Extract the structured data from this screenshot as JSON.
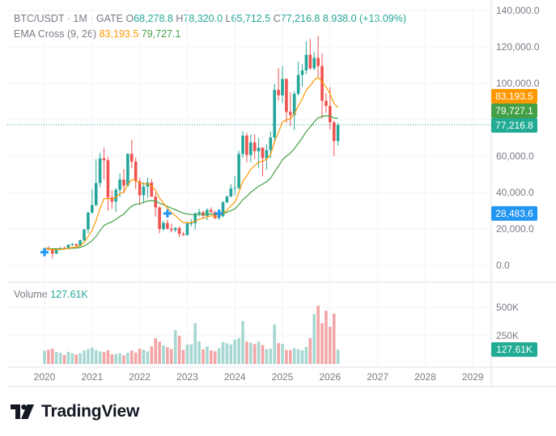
{
  "header": {
    "symbol": "BTC/USDT · 1M · GATE",
    "o_label": "O",
    "o": "68,278.8",
    "h_label": "H",
    "h": "78,320.0",
    "l_label": "L",
    "l": "65,712.5",
    "c_label": "C",
    "c": "77,216.8",
    "change": "8,938.0 (+13.09%)"
  },
  "ema": {
    "label": "EMA Cross (9, 26)",
    "fast": "83,193.5",
    "slow": "79,727.1"
  },
  "volume": {
    "label": "Volume",
    "value": "127.61K"
  },
  "price_tags": {
    "ema_fast": "83,193.5",
    "ema_slow": "79,727.1",
    "last": "77,216.8",
    "marker": "28,483.6"
  },
  "volume_tag": "127.61K",
  "brand": {
    "name": "TradingView"
  },
  "colors": {
    "up": "#26a69a",
    "down": "#ef5350",
    "ema_fast": "#ff9800",
    "ema_slow": "#43a047",
    "marker": "#2196f3"
  },
  "chart_data": {
    "type": "candlestick",
    "title": "BTC/USDT · 1M · GATE",
    "price_ticks": [
      0,
      20000,
      40000,
      60000,
      80000,
      100000,
      120000,
      140000
    ],
    "price_tick_labels": [
      "0.0",
      "20,000.0",
      "40,000.0",
      "60,000.0",
      "80,000.0",
      "100,000.0",
      "120,000.0",
      "140,000.0"
    ],
    "volume_ticks": [
      250000,
      500000
    ],
    "volume_tick_labels": [
      "250K",
      "500K"
    ],
    "year_labels": [
      "2020",
      "2021",
      "2022",
      "2023",
      "2024",
      "2025",
      "2026",
      "2027",
      "2028",
      "2029"
    ],
    "start_year": 2020,
    "candles": [
      [
        7200,
        9600,
        6900,
        9350
      ],
      [
        9350,
        10500,
        8400,
        8550
      ],
      [
        8550,
        9200,
        3800,
        6400
      ],
      [
        6400,
        9500,
        6200,
        8650
      ],
      [
        8650,
        10000,
        8100,
        9450
      ],
      [
        9450,
        10400,
        8900,
        9150
      ],
      [
        9150,
        11500,
        9000,
        11350
      ],
      [
        11350,
        12500,
        10600,
        11650
      ],
      [
        11650,
        12050,
        9800,
        10800
      ],
      [
        10800,
        14100,
        10400,
        13800
      ],
      [
        13800,
        19900,
        13200,
        19700
      ],
      [
        19700,
        29300,
        17600,
        29000
      ],
      [
        29000,
        41900,
        28100,
        33100
      ],
      [
        33100,
        58300,
        32400,
        45200
      ],
      [
        45200,
        61800,
        43000,
        58800
      ],
      [
        58800,
        64800,
        47000,
        57700
      ],
      [
        57700,
        59500,
        30000,
        37300
      ],
      [
        37300,
        41300,
        31000,
        35000
      ],
      [
        35000,
        42500,
        29300,
        41500
      ],
      [
        41500,
        50500,
        37400,
        47100
      ],
      [
        47100,
        52900,
        39600,
        43800
      ],
      [
        43800,
        61500,
        43300,
        61300
      ],
      [
        61300,
        69000,
        53300,
        57000
      ],
      [
        57000,
        59200,
        42000,
        46200
      ],
      [
        46200,
        47900,
        33000,
        38500
      ],
      [
        38500,
        45800,
        34300,
        43200
      ],
      [
        43200,
        48200,
        37200,
        45500
      ],
      [
        45500,
        47400,
        37800,
        37700
      ],
      [
        37700,
        40000,
        26700,
        31800
      ],
      [
        31800,
        32400,
        17600,
        19900
      ],
      [
        19900,
        24600,
        18800,
        23300
      ],
      [
        23300,
        25200,
        19600,
        20100
      ],
      [
        20100,
        22800,
        18100,
        19400
      ],
      [
        19400,
        21000,
        18200,
        20500
      ],
      [
        20500,
        21400,
        15500,
        17200
      ],
      [
        17200,
        18400,
        16300,
        16550
      ],
      [
        16550,
        23900,
        16500,
        23100
      ],
      [
        23100,
        25300,
        21400,
        23150
      ],
      [
        23150,
        29200,
        19600,
        28500
      ],
      [
        28500,
        31000,
        26900,
        29250
      ],
      [
        29250,
        29900,
        25800,
        27200
      ],
      [
        27200,
        31400,
        24800,
        30450
      ],
      [
        30450,
        31800,
        28900,
        29200
      ],
      [
        29200,
        30000,
        25300,
        25950
      ],
      [
        25950,
        28000,
        24900,
        26950
      ],
      [
        26950,
        35300,
        26500,
        34600
      ],
      [
        34600,
        38500,
        34100,
        37700
      ],
      [
        37700,
        44700,
        37600,
        42300
      ],
      [
        42300,
        49000,
        38500,
        42500
      ],
      [
        42500,
        63000,
        41800,
        61200
      ],
      [
        61200,
        73800,
        59000,
        71300
      ],
      [
        71300,
        72800,
        56600,
        60600
      ],
      [
        60600,
        71900,
        56500,
        67500
      ],
      [
        67500,
        72000,
        58400,
        62700
      ],
      [
        62700,
        70000,
        53500,
        64600
      ],
      [
        64600,
        65000,
        49000,
        58900
      ],
      [
        58900,
        66500,
        52500,
        63300
      ],
      [
        63300,
        73600,
        58800,
        70200
      ],
      [
        70200,
        99600,
        66800,
        96400
      ],
      [
        96400,
        108300,
        90500,
        93400
      ],
      [
        93400,
        109600,
        89100,
        102400
      ],
      [
        102400,
        102700,
        78200,
        84300
      ],
      [
        84300,
        95000,
        76600,
        82500
      ],
      [
        82500,
        95700,
        74400,
        94200
      ],
      [
        94200,
        111900,
        93300,
        104600
      ],
      [
        104600,
        110500,
        98200,
        107100
      ],
      [
        107100,
        123200,
        105100,
        115700
      ],
      [
        115700,
        124400,
        107500,
        108200
      ],
      [
        108200,
        117000,
        107200,
        114000
      ],
      [
        114000,
        126200,
        103000,
        109500
      ],
      [
        109500,
        116400,
        80500,
        90400
      ],
      [
        90400,
        94600,
        83800,
        87600
      ],
      [
        87600,
        97900,
        74500,
        78600
      ],
      [
        78600,
        79500,
        60000,
        68300
      ],
      [
        68300,
        78320,
        65712.5,
        77216.8
      ]
    ],
    "volume": [
      118000,
      127000,
      135000,
      108000,
      98000,
      80000,
      108000,
      94000,
      84000,
      95000,
      119000,
      132000,
      145000,
      123000,
      112000,
      105000,
      122000,
      85000,
      88000,
      95000,
      76000,
      100000,
      120000,
      100000,
      135000,
      126000,
      112000,
      155000,
      228000,
      198000,
      163000,
      148000,
      132000,
      300000,
      250000,
      125000,
      173000,
      174000,
      360000,
      200000,
      130000,
      156000,
      120000,
      112000,
      140000,
      195000,
      183000,
      172000,
      215000,
      230000,
      380000,
      198000,
      188000,
      176000,
      198000,
      168000,
      130000,
      135000,
      350000,
      185000,
      178000,
      124000,
      122000,
      138000,
      130000,
      122000,
      151000,
      230000,
      440000,
      515000,
      360000,
      470000,
      328000,
      445000,
      127610
    ],
    "ema_fast": {
      "name": "EMA 9",
      "last": 83193.5
    },
    "ema_slow": {
      "name": "EMA 26",
      "last": 79727.1
    },
    "cross_markers": [
      {
        "month_index": 0,
        "price": 7200
      },
      {
        "month_index": 31,
        "price": 28483.6
      },
      {
        "month_index": 44,
        "price": 28483.6
      }
    ],
    "last_close": 77216.8
  }
}
